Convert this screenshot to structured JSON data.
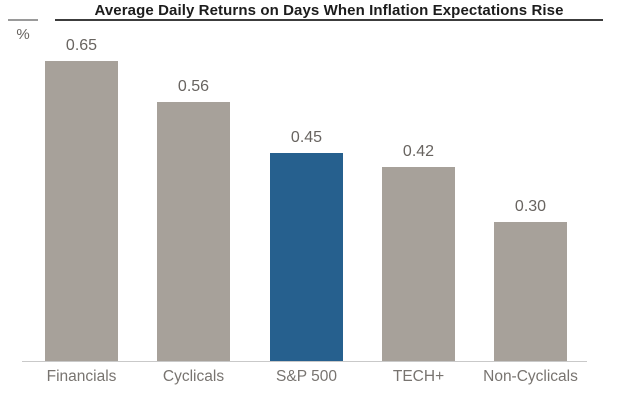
{
  "chart_data": {
    "type": "bar",
    "title": "Average Daily Returns on Days When Inflation Expectations Rise",
    "ylabel": "%",
    "xlabel": "",
    "categories": [
      "Financials",
      "Cyclicals",
      "S&P 500",
      "TECH+",
      "Non-Cyclicals"
    ],
    "values": [
      0.65,
      0.56,
      0.45,
      0.42,
      0.3
    ],
    "value_labels": [
      "0.65",
      "0.56",
      "0.45",
      "0.42",
      "0.30"
    ],
    "highlight_index": 2,
    "highlight_category": "S&P 500",
    "ylim": [
      0,
      0.7
    ],
    "grid": false,
    "legend": false,
    "colors": {
      "bar_default": "#a7a19a",
      "bar_highlight": "#26608e",
      "title_text": "#1c1c1c",
      "title_rule": "#3c3c3c",
      "value_label_text": "#686460",
      "category_label_text": "#787470",
      "axis_line": "#c9c9c9"
    }
  }
}
